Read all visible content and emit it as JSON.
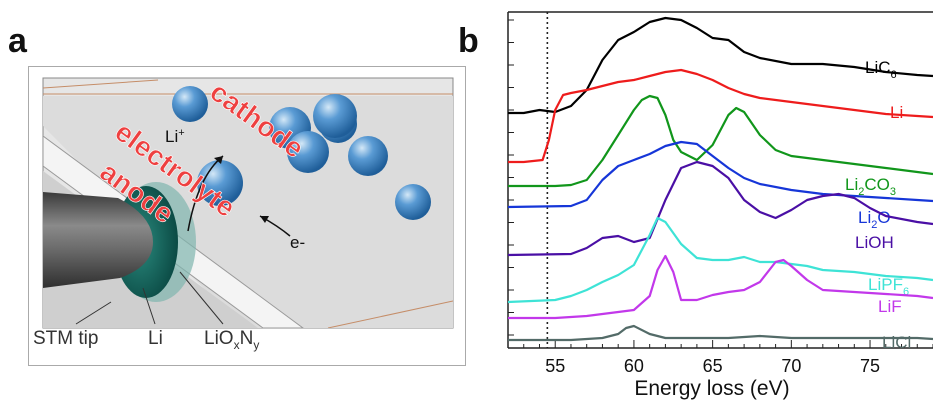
{
  "panel_a": {
    "letter": "a",
    "labels": {
      "cathode": "cathode",
      "electrolyte": "electrolyte",
      "anode": "anode",
      "li_ion": "Li",
      "li_ion_sup": "+",
      "electron": "e-",
      "stm_tip": "STM tip",
      "li": "Li",
      "lioxny_main": "LiO",
      "lioxny_sub_x": "x",
      "lioxny_n": "N",
      "lioxny_sub_y": "y"
    },
    "colors": {
      "sphere": "#3f86c6",
      "anode_fill": "#0d5c55",
      "tip": "#555555",
      "red_label": "#ee4040"
    }
  },
  "panel_b": {
    "letter": "b"
  },
  "chart_data": {
    "type": "line",
    "xlabel": "Energy loss (eV)",
    "xlim": [
      52,
      79
    ],
    "x_ticks": [
      55,
      60,
      65,
      70,
      75
    ],
    "dotted_line_x": 54.5,
    "grid": false,
    "series": [
      {
        "name": "LiC",
        "sub": "6",
        "color": "#000000",
        "points": [
          [
            52,
            113
          ],
          [
            53,
            113
          ],
          [
            54,
            110
          ],
          [
            55,
            112
          ],
          [
            56,
            106
          ],
          [
            57,
            90
          ],
          [
            58,
            60
          ],
          [
            59,
            40
          ],
          [
            60,
            32
          ],
          [
            61,
            22
          ],
          [
            62,
            18
          ],
          [
            63,
            20
          ],
          [
            64,
            28
          ],
          [
            65,
            38
          ],
          [
            66,
            40
          ],
          [
            67,
            52
          ],
          [
            68,
            58
          ],
          [
            70,
            64
          ],
          [
            72,
            64
          ],
          [
            74,
            67
          ],
          [
            76,
            72
          ],
          [
            78,
            75
          ],
          [
            79,
            76
          ]
        ]
      },
      {
        "name": "Li",
        "sub": "",
        "color": "#ee1c1c",
        "points": [
          [
            52,
            162
          ],
          [
            53,
            162
          ],
          [
            54.2,
            160
          ],
          [
            54.6,
            140
          ],
          [
            55,
            110
          ],
          [
            55.5,
            95
          ],
          [
            56,
            93
          ],
          [
            57,
            90
          ],
          [
            58,
            86
          ],
          [
            59,
            82
          ],
          [
            60,
            80
          ],
          [
            61,
            76
          ],
          [
            62,
            72
          ],
          [
            63,
            70
          ],
          [
            64,
            74
          ],
          [
            65,
            80
          ],
          [
            66,
            88
          ],
          [
            67,
            94
          ],
          [
            68,
            98
          ],
          [
            70,
            102
          ],
          [
            72,
            106
          ],
          [
            74,
            110
          ],
          [
            76,
            114
          ],
          [
            78,
            116
          ],
          [
            79,
            117
          ]
        ]
      },
      {
        "name": "Li",
        "sub": "2",
        "name2": "CO",
        "sub2": "3",
        "color": "#11961b",
        "points": [
          [
            52,
            186
          ],
          [
            55,
            186
          ],
          [
            56,
            185
          ],
          [
            57,
            180
          ],
          [
            58,
            160
          ],
          [
            59,
            135
          ],
          [
            60,
            110
          ],
          [
            60.5,
            100
          ],
          [
            61,
            96
          ],
          [
            61.5,
            98
          ],
          [
            62,
            115
          ],
          [
            62.5,
            140
          ],
          [
            63,
            152
          ],
          [
            64,
            160
          ],
          [
            65,
            145
          ],
          [
            66,
            115
          ],
          [
            66.5,
            108
          ],
          [
            67,
            112
          ],
          [
            68,
            135
          ],
          [
            69,
            150
          ],
          [
            70,
            156
          ],
          [
            72,
            160
          ],
          [
            74,
            164
          ],
          [
            76,
            168
          ],
          [
            78,
            172
          ],
          [
            79,
            174
          ]
        ]
      },
      {
        "name": "Li",
        "sub": "2",
        "name2": "O",
        "sub2": "",
        "color": "#1636d8",
        "points": [
          [
            52,
            207
          ],
          [
            56,
            206
          ],
          [
            57,
            200
          ],
          [
            58,
            180
          ],
          [
            59,
            166
          ],
          [
            60,
            160
          ],
          [
            61,
            154
          ],
          [
            62,
            146
          ],
          [
            63,
            142
          ],
          [
            64,
            144
          ],
          [
            65,
            156
          ],
          [
            66,
            168
          ],
          [
            67,
            178
          ],
          [
            68,
            184
          ],
          [
            70,
            190
          ],
          [
            72,
            194
          ],
          [
            74,
            196
          ],
          [
            76,
            198
          ],
          [
            78,
            200
          ],
          [
            79,
            201
          ]
        ]
      },
      {
        "name": "LiOH",
        "sub": "",
        "color": "#4a0fa5",
        "points": [
          [
            52,
            255
          ],
          [
            56,
            254
          ],
          [
            57,
            248
          ],
          [
            58,
            238
          ],
          [
            59,
            236
          ],
          [
            60,
            242
          ],
          [
            61,
            238
          ],
          [
            62,
            200
          ],
          [
            63,
            168
          ],
          [
            64,
            162
          ],
          [
            65,
            166
          ],
          [
            66,
            178
          ],
          [
            67,
            200
          ],
          [
            68,
            212
          ],
          [
            69,
            218
          ],
          [
            70,
            210
          ],
          [
            71,
            200
          ],
          [
            72,
            196
          ],
          [
            73,
            194
          ],
          [
            74,
            198
          ],
          [
            75,
            208
          ],
          [
            76,
            216
          ],
          [
            78,
            222
          ],
          [
            79,
            224
          ]
        ]
      },
      {
        "name": "LiPF",
        "sub": "6",
        "color": "#3ee3d6",
        "points": [
          [
            52,
            302
          ],
          [
            55,
            300
          ],
          [
            56,
            296
          ],
          [
            57,
            290
          ],
          [
            58,
            282
          ],
          [
            59,
            275
          ],
          [
            60,
            265
          ],
          [
            61,
            235
          ],
          [
            61.5,
            218
          ],
          [
            62,
            222
          ],
          [
            63,
            244
          ],
          [
            64,
            258
          ],
          [
            65,
            260
          ],
          [
            66,
            260
          ],
          [
            67,
            257
          ],
          [
            68,
            262
          ],
          [
            69,
            262
          ],
          [
            70,
            264
          ],
          [
            71,
            266
          ],
          [
            72,
            270
          ],
          [
            74,
            272
          ],
          [
            76,
            276
          ],
          [
            78,
            278
          ],
          [
            79,
            280
          ]
        ]
      },
      {
        "name": "LiF",
        "sub": "",
        "color": "#c238ea",
        "points": [
          [
            52,
            318
          ],
          [
            55,
            318
          ],
          [
            57,
            316
          ],
          [
            58,
            314
          ],
          [
            59,
            312
          ],
          [
            60,
            310
          ],
          [
            61,
            296
          ],
          [
            61.5,
            270
          ],
          [
            62,
            256
          ],
          [
            62.5,
            272
          ],
          [
            63,
            300
          ],
          [
            64,
            300
          ],
          [
            65,
            295
          ],
          [
            66,
            292
          ],
          [
            67,
            290
          ],
          [
            68,
            282
          ],
          [
            69,
            262
          ],
          [
            69.5,
            260
          ],
          [
            70,
            266
          ],
          [
            71,
            280
          ],
          [
            72,
            290
          ],
          [
            74,
            292
          ],
          [
            76,
            294
          ],
          [
            78,
            296
          ],
          [
            79,
            298
          ]
        ]
      },
      {
        "name": "LiCl",
        "sub": "",
        "color": "#536b68",
        "points": [
          [
            52,
            340
          ],
          [
            56,
            340
          ],
          [
            58,
            338
          ],
          [
            59,
            334
          ],
          [
            59.5,
            328
          ],
          [
            60,
            326
          ],
          [
            61,
            334
          ],
          [
            62,
            338
          ],
          [
            64,
            338
          ],
          [
            66,
            338
          ],
          [
            68,
            336
          ],
          [
            70,
            338
          ],
          [
            72,
            338
          ],
          [
            74,
            338
          ],
          [
            76,
            338
          ],
          [
            78,
            338
          ],
          [
            79,
            339
          ]
        ]
      }
    ]
  }
}
